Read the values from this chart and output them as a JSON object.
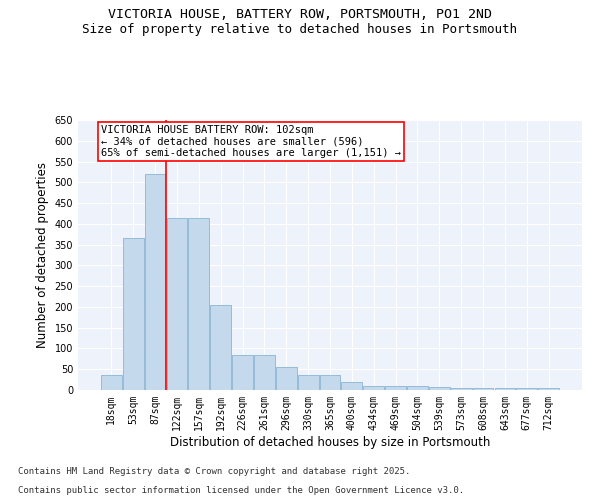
{
  "title_line1": "VICTORIA HOUSE, BATTERY ROW, PORTSMOUTH, PO1 2ND",
  "title_line2": "Size of property relative to detached houses in Portsmouth",
  "xlabel": "Distribution of detached houses by size in Portsmouth",
  "ylabel": "Number of detached properties",
  "categories": [
    "18sqm",
    "53sqm",
    "87sqm",
    "122sqm",
    "157sqm",
    "192sqm",
    "226sqm",
    "261sqm",
    "296sqm",
    "330sqm",
    "365sqm",
    "400sqm",
    "434sqm",
    "469sqm",
    "504sqm",
    "539sqm",
    "573sqm",
    "608sqm",
    "643sqm",
    "677sqm",
    "712sqm"
  ],
  "values": [
    35,
    365,
    520,
    415,
    415,
    205,
    85,
    85,
    55,
    35,
    35,
    20,
    10,
    10,
    10,
    8,
    5,
    5,
    5,
    5,
    5
  ],
  "bar_color": "#c5d9ec",
  "bar_edge_color": "#8ab4d4",
  "background_color": "#eef2fa",
  "grid_color": "#ffffff",
  "annotation_box_text": "VICTORIA HOUSE BATTERY ROW: 102sqm\n← 34% of detached houses are smaller (596)\n65% of semi-detached houses are larger (1,151) →",
  "red_line_x": 2.5,
  "ylim": [
    0,
    650
  ],
  "yticks": [
    0,
    50,
    100,
    150,
    200,
    250,
    300,
    350,
    400,
    450,
    500,
    550,
    600,
    650
  ],
  "footnote1": "Contains HM Land Registry data © Crown copyright and database right 2025.",
  "footnote2": "Contains public sector information licensed under the Open Government Licence v3.0.",
  "title_fontsize": 9.5,
  "subtitle_fontsize": 9,
  "tick_fontsize": 7,
  "ylabel_fontsize": 8.5,
  "xlabel_fontsize": 8.5,
  "annotation_fontsize": 7.5,
  "footnote_fontsize": 6.5
}
